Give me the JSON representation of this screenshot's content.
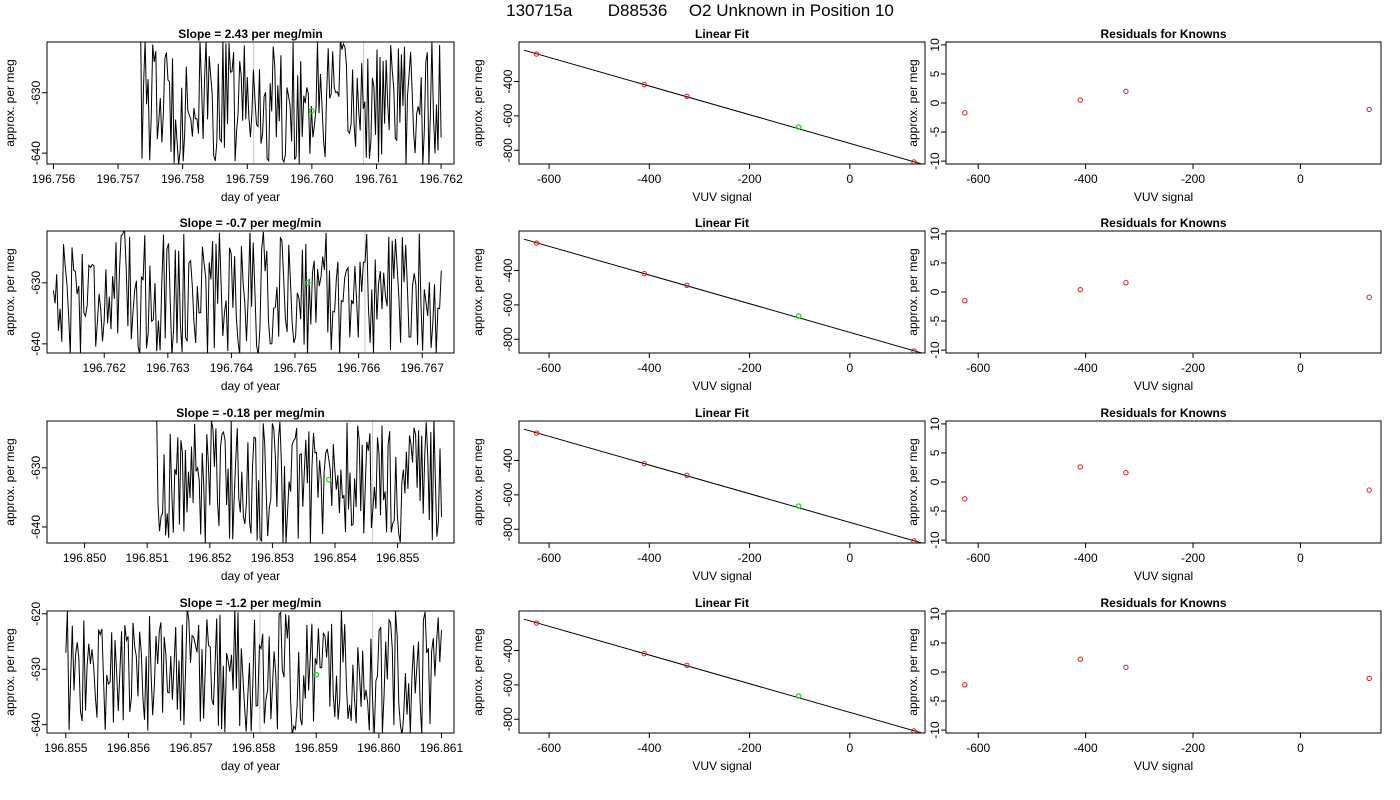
{
  "header": {
    "run_id": "130715a",
    "tank_id": "D88536",
    "label": "O2 Unknown in Position  10"
  },
  "colors": {
    "trace": "#000000",
    "marker_green": "#22cc22",
    "marker_red": "#cc2222",
    "divider_gray": "#c8c8c8"
  },
  "rows": [
    {
      "timeseries": {
        "slope": "2.43",
        "title_prefix": "Slope =  ",
        "title_suffix": "  per meg/min",
        "xlabel": "day of year",
        "ylabel": "approx. per meg",
        "xlim": [
          196.7559,
          196.7622
        ],
        "xticks": [
          196.756,
          196.757,
          196.758,
          196.759,
          196.76,
          196.761,
          196.762
        ],
        "xtick_labels": [
          "196.756",
          "196.757",
          "196.758",
          "196.759",
          "196.760",
          "196.761",
          "196.762"
        ],
        "ylim": [
          -641.8,
          -621.6
        ],
        "yticks": [
          -630,
          -640
        ],
        "ytick_labels": [
          "-630",
          "-640"
        ],
        "t_start": 196.7573,
        "t_end": 196.762,
        "n_points": 200,
        "dividers": [
          196.7591,
          196.7608
        ],
        "mean_marker": {
          "x": 196.76,
          "y": -633
        }
      },
      "fit": {
        "title": "Linear Fit",
        "xlabel": "VUV signal",
        "ylabel": "approx. per meg",
        "knowns": [
          {
            "x": -625,
            "y": -240
          },
          {
            "x": -410,
            "y": -418
          },
          {
            "x": -325,
            "y": -486
          },
          {
            "x": 128,
            "y": -868
          }
        ],
        "unknown": {
          "x": -102,
          "y": -665
        }
      },
      "residuals": {
        "title": "Residuals for Knowns",
        "xlabel": "VUV signal",
        "ylabel": "approx. per meg",
        "points": [
          {
            "x": -625,
            "y": -1.7
          },
          {
            "x": -410,
            "y": 0.5
          },
          {
            "x": -325,
            "y": 2.0
          },
          {
            "x": 128,
            "y": -1.1
          }
        ]
      }
    },
    {
      "timeseries": {
        "slope": "-0.7",
        "title_prefix": "Slope =  ",
        "title_suffix": "  per meg/min",
        "xlabel": "day of year",
        "ylabel": "approx. per meg",
        "xlim": [
          196.7611,
          196.7675
        ],
        "xticks": [
          196.762,
          196.763,
          196.764,
          196.765,
          196.766,
          196.767
        ],
        "xtick_labels": [
          "196.762",
          "196.763",
          "196.764",
          "196.765",
          "196.766",
          "196.767"
        ],
        "ylim": [
          -641.5,
          -621.5
        ],
        "yticks": [
          -630,
          -640
        ],
        "ytick_labels": [
          "-630",
          "-640"
        ],
        "t_start": 196.7612,
        "t_end": 196.7673,
        "n_points": 230,
        "dividers": [
          196.7643,
          196.7661
        ],
        "mean_marker": {
          "x": 196.7652,
          "y": -630
        }
      },
      "fit": {
        "title": "Linear Fit",
        "xlabel": "VUV signal",
        "ylabel": "approx. per meg",
        "knowns": [
          {
            "x": -625,
            "y": -240
          },
          {
            "x": -410,
            "y": -418
          },
          {
            "x": -325,
            "y": -486
          },
          {
            "x": 128,
            "y": -868
          }
        ],
        "unknown": {
          "x": -102,
          "y": -665
        }
      },
      "residuals": {
        "title": "Residuals for Knowns",
        "xlabel": "VUV signal",
        "ylabel": "approx. per meg",
        "points": [
          {
            "x": -625,
            "y": -1.5
          },
          {
            "x": -410,
            "y": 0.4
          },
          {
            "x": -325,
            "y": 1.6
          },
          {
            "x": 128,
            "y": -0.9
          }
        ]
      }
    },
    {
      "timeseries": {
        "slope": "-0.18",
        "title_prefix": "Slope =  ",
        "title_suffix": "  per meg/min",
        "xlabel": "day of year",
        "ylabel": "approx. per meg",
        "xlim": [
          196.8494,
          196.8559
        ],
        "xticks": [
          196.85,
          196.851,
          196.852,
          196.853,
          196.854,
          196.855
        ],
        "xtick_labels": [
          "196.850",
          "196.851",
          "196.852",
          "196.853",
          "196.854",
          "196.855"
        ],
        "ylim": [
          -642.7,
          -622.1
        ],
        "yticks": [
          -630,
          -640
        ],
        "ytick_labels": [
          "-630",
          "-640"
        ],
        "t_start": 196.8511,
        "t_end": 196.8557,
        "n_points": 190,
        "dividers": [
          196.8528,
          196.8546
        ],
        "mean_marker": {
          "x": 196.8539,
          "y": -632
        }
      },
      "fit": {
        "title": "Linear Fit",
        "xlabel": "VUV signal",
        "ylabel": "approx. per meg",
        "knowns": [
          {
            "x": -625,
            "y": -240
          },
          {
            "x": -410,
            "y": -418
          },
          {
            "x": -325,
            "y": -486
          },
          {
            "x": 128,
            "y": -868
          }
        ],
        "unknown": {
          "x": -102,
          "y": -665
        }
      },
      "residuals": {
        "title": "Residuals for Knowns",
        "xlabel": "VUV signal",
        "ylabel": "approx. per meg",
        "points": [
          {
            "x": -625,
            "y": -2.9
          },
          {
            "x": -410,
            "y": 2.6
          },
          {
            "x": -325,
            "y": 1.6
          },
          {
            "x": 128,
            "y": -1.4
          }
        ]
      }
    },
    {
      "timeseries": {
        "slope": "-1.2",
        "title_prefix": "Slope =  ",
        "title_suffix": "  per meg/min",
        "xlabel": "day of year",
        "ylabel": "approx. per meg",
        "xlim": [
          196.8547,
          196.8612
        ],
        "xticks": [
          196.855,
          196.856,
          196.857,
          196.858,
          196.859,
          196.86,
          196.861
        ],
        "xtick_labels": [
          "196.855",
          "196.856",
          "196.857",
          "196.858",
          "196.859",
          "196.860",
          "196.861"
        ],
        "ylim": [
          -641.5,
          -619.5
        ],
        "yticks": [
          -620,
          -630,
          -640
        ],
        "ytick_labels": [
          "-620",
          "-630",
          "-640"
        ],
        "t_start": 196.855,
        "t_end": 196.861,
        "n_points": 230,
        "dividers": [
          196.8581,
          196.8599
        ],
        "mean_marker": {
          "x": 196.859,
          "y": -631
        }
      },
      "fit": {
        "title": "Linear Fit",
        "xlabel": "VUV signal",
        "ylabel": "approx. per meg",
        "knowns": [
          {
            "x": -625,
            "y": -240
          },
          {
            "x": -410,
            "y": -418
          },
          {
            "x": -325,
            "y": -486
          },
          {
            "x": 128,
            "y": -868
          }
        ],
        "unknown": {
          "x": -102,
          "y": -665
        }
      },
      "residuals": {
        "title": "Residuals for Knowns",
        "xlabel": "VUV signal",
        "ylabel": "approx. per meg",
        "points": [
          {
            "x": -625,
            "y": -2.2
          },
          {
            "x": -410,
            "y": 2.2
          },
          {
            "x": -325,
            "y": 0.8
          },
          {
            "x": 128,
            "y": -1.1
          }
        ]
      }
    }
  ],
  "chart_data": [
    {
      "type": "line",
      "title": "Slope =  2.43  per meg/min",
      "xlabel": "day of year",
      "ylabel": "approx. per meg",
      "xlim": [
        196.7559,
        196.7622
      ],
      "ylim": [
        -641.8,
        -621.6
      ],
      "note_series": "noisy per-meg trace"
    },
    {
      "type": "scatter",
      "title": "Linear Fit",
      "xlabel": "VUV signal",
      "ylabel": "approx. per meg",
      "xlim": [
        -660,
        150
      ],
      "ylim": [
        -880,
        -170
      ],
      "series": [
        {
          "values": [
            [
              -625,
              -240
            ],
            [
              -410,
              -418
            ],
            [
              -325,
              -486
            ],
            [
              128,
              -868
            ]
          ]
        },
        {
          "values": [
            [
              -102,
              -665
            ]
          ]
        }
      ]
    },
    {
      "type": "scatter",
      "title": "Residuals for Knowns",
      "xlabel": "VUV signal",
      "ylabel": "approx. per meg",
      "xlim": [
        -660,
        150
      ],
      "ylim": [
        -10.5,
        10.5
      ],
      "series": [
        {
          "values": [
            [
              -625,
              -1.7
            ],
            [
              -410,
              0.5
            ],
            [
              -325,
              2.0
            ],
            [
              128,
              -1.1
            ]
          ]
        }
      ]
    }
  ],
  "shared_axes": {
    "fit_xlim": [
      -660,
      150
    ],
    "fit_ylim": [
      -880,
      -170
    ],
    "fit_xticks": [
      -600,
      -400,
      -200,
      0
    ],
    "fit_yticks": [
      -400,
      -600,
      -800
    ],
    "resid_xlim": [
      -660,
      150
    ],
    "resid_ylim": [
      -10.5,
      10.5
    ],
    "resid_yticks": [
      10,
      5,
      0,
      -5,
      -10
    ]
  }
}
